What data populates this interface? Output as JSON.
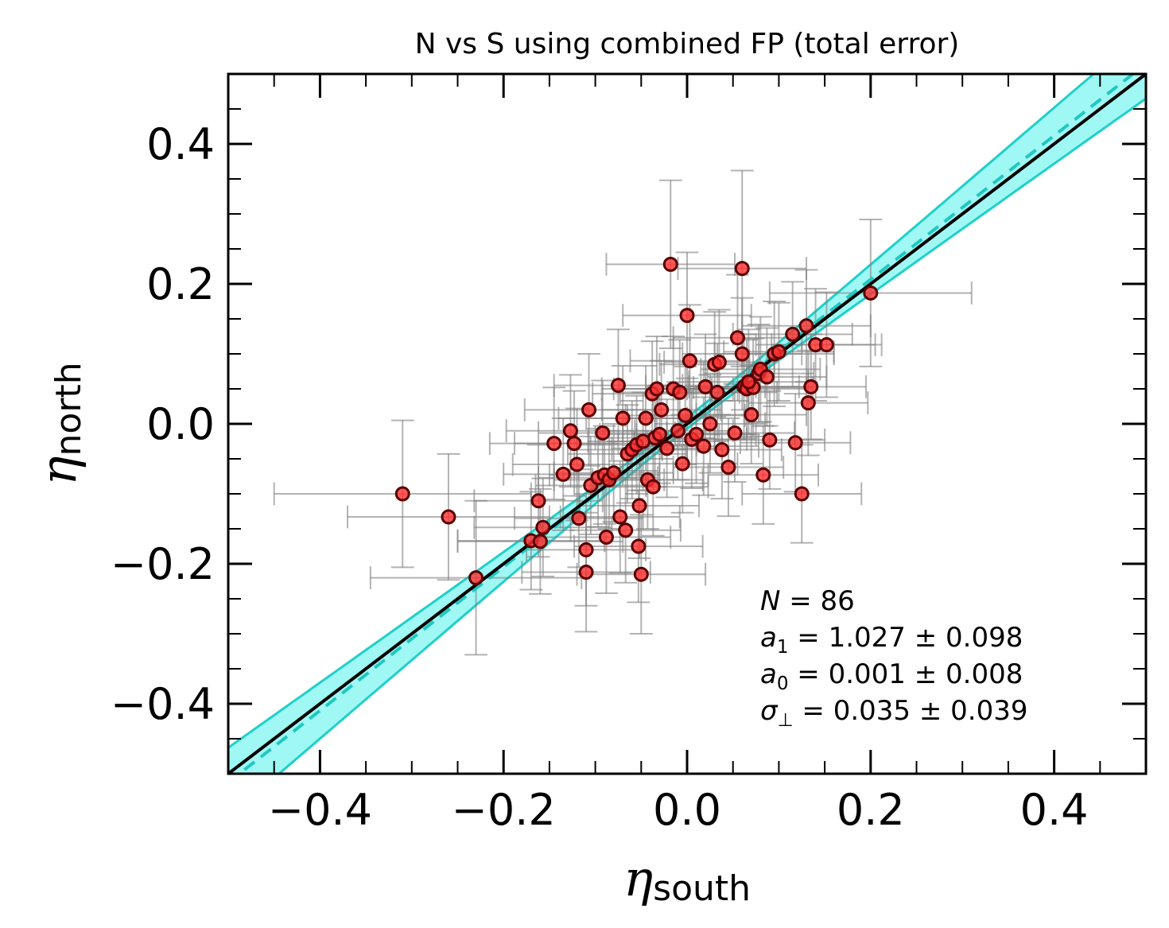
{
  "chart_data": {
    "type": "scatter",
    "title": "N vs S using combined FP (total error)",
    "xlabel": {
      "symbol": "η",
      "subscript": "south"
    },
    "ylabel": {
      "symbol": "η",
      "subscript": "north"
    },
    "xlim": [
      -0.5,
      0.5
    ],
    "ylim": [
      -0.5,
      0.5
    ],
    "major_ticks": [
      -0.4,
      -0.2,
      0.0,
      0.2,
      0.4
    ],
    "tick_labels": [
      "−0.4",
      "−0.2",
      "0.0",
      "0.2",
      "0.4"
    ],
    "minor_tick_step": 0.05,
    "grid": false,
    "colors": {
      "points": "#ff3030",
      "point_edge": "#5a0000",
      "errorbars": "#808080",
      "band": "#7ff5f0",
      "band_edge": "#20d0c8",
      "fit_line": "#20c8c0",
      "identity_line": "#000000"
    },
    "fit": {
      "slope": 1.027,
      "intercept": 0.001,
      "slope_err": 0.098,
      "intercept_err": 0.008
    },
    "identity": {
      "slope": 1.0,
      "intercept": 0.0
    },
    "annotations": [
      {
        "var": "N",
        "sub": "",
        "text": " = 86"
      },
      {
        "var": "a",
        "sub": "1",
        "text": " = 1.027 ± 0.098"
      },
      {
        "var": "a",
        "sub": "0",
        "text": " = 0.001 ± 0.008"
      },
      {
        "var": "σ",
        "sub": "⊥",
        "text": " = 0.035 ± 0.039"
      }
    ],
    "points": [
      {
        "x": -0.31,
        "y": -0.1,
        "xerr": 0.14,
        "yerr": 0.105
      },
      {
        "x": -0.26,
        "y": -0.133,
        "xerr": 0.11,
        "yerr": 0.09
      },
      {
        "x": -0.23,
        "y": -0.22,
        "xerr": 0.115,
        "yerr": 0.11
      },
      {
        "x": -0.17,
        "y": -0.167,
        "xerr": 0.08,
        "yerr": 0.07
      },
      {
        "x": -0.162,
        "y": -0.11,
        "xerr": 0.07,
        "yerr": 0.08
      },
      {
        "x": -0.16,
        "y": -0.168,
        "xerr": 0.09,
        "yerr": 0.075
      },
      {
        "x": -0.157,
        "y": -0.148,
        "xerr": 0.075,
        "yerr": 0.07
      },
      {
        "x": -0.145,
        "y": -0.028,
        "xerr": 0.07,
        "yerr": 0.08
      },
      {
        "x": -0.135,
        "y": -0.072,
        "xerr": 0.065,
        "yerr": 0.08
      },
      {
        "x": -0.127,
        "y": -0.01,
        "xerr": 0.07,
        "yerr": 0.08
      },
      {
        "x": -0.123,
        "y": -0.028,
        "xerr": 0.065,
        "yerr": 0.075
      },
      {
        "x": -0.118,
        "y": -0.135,
        "xerr": 0.07,
        "yerr": 0.07
      },
      {
        "x": -0.11,
        "y": -0.18,
        "xerr": 0.065,
        "yerr": 0.08
      },
      {
        "x": -0.11,
        "y": -0.212,
        "xerr": 0.07,
        "yerr": 0.085
      },
      {
        "x": -0.107,
        "y": 0.02,
        "xerr": 0.07,
        "yerr": 0.08
      },
      {
        "x": -0.105,
        "y": -0.088,
        "xerr": 0.06,
        "yerr": 0.07
      },
      {
        "x": -0.097,
        "y": -0.077,
        "xerr": 0.065,
        "yerr": 0.07
      },
      {
        "x": -0.092,
        "y": -0.013,
        "xerr": 0.07,
        "yerr": 0.075
      },
      {
        "x": -0.09,
        "y": -0.073,
        "xerr": 0.06,
        "yerr": 0.07
      },
      {
        "x": -0.088,
        "y": -0.162,
        "xerr": 0.07,
        "yerr": 0.08
      },
      {
        "x": -0.085,
        "y": -0.08,
        "xerr": 0.06,
        "yerr": 0.07
      },
      {
        "x": -0.08,
        "y": -0.07,
        "xerr": 0.065,
        "yerr": 0.07
      },
      {
        "x": -0.075,
        "y": 0.055,
        "xerr": 0.07,
        "yerr": 0.08
      },
      {
        "x": -0.073,
        "y": -0.133,
        "xerr": 0.065,
        "yerr": 0.08
      },
      {
        "x": -0.07,
        "y": 0.008,
        "xerr": 0.07,
        "yerr": 0.075
      },
      {
        "x": -0.067,
        "y": -0.152,
        "xerr": 0.06,
        "yerr": 0.075
      },
      {
        "x": -0.065,
        "y": -0.043,
        "xerr": 0.065,
        "yerr": 0.07
      },
      {
        "x": -0.06,
        "y": -0.037,
        "xerr": 0.06,
        "yerr": 0.07
      },
      {
        "x": -0.055,
        "y": -0.03,
        "xerr": 0.065,
        "yerr": 0.07
      },
      {
        "x": -0.053,
        "y": -0.175,
        "xerr": 0.07,
        "yerr": 0.08
      },
      {
        "x": -0.052,
        "y": -0.117,
        "xerr": 0.065,
        "yerr": 0.075
      },
      {
        "x": -0.05,
        "y": -0.215,
        "xerr": 0.07,
        "yerr": 0.085
      },
      {
        "x": -0.048,
        "y": -0.025,
        "xerr": 0.06,
        "yerr": 0.07
      },
      {
        "x": -0.045,
        "y": 0.008,
        "xerr": 0.065,
        "yerr": 0.075
      },
      {
        "x": -0.043,
        "y": -0.08,
        "xerr": 0.06,
        "yerr": 0.07
      },
      {
        "x": -0.038,
        "y": 0.043,
        "xerr": 0.065,
        "yerr": 0.075
      },
      {
        "x": -0.037,
        "y": -0.09,
        "xerr": 0.06,
        "yerr": 0.07
      },
      {
        "x": -0.035,
        "y": -0.02,
        "xerr": 0.065,
        "yerr": 0.07
      },
      {
        "x": -0.033,
        "y": 0.05,
        "xerr": 0.06,
        "yerr": 0.075
      },
      {
        "x": -0.03,
        "y": -0.015,
        "xerr": 0.065,
        "yerr": 0.07
      },
      {
        "x": -0.022,
        "y": -0.035,
        "xerr": 0.06,
        "yerr": 0.07
      },
      {
        "x": -0.018,
        "y": 0.228,
        "xerr": 0.07,
        "yerr": 0.12
      },
      {
        "x": -0.015,
        "y": 0.05,
        "xerr": 0.065,
        "yerr": 0.075
      },
      {
        "x": -0.01,
        "y": -0.01,
        "xerr": 0.06,
        "yerr": 0.07
      },
      {
        "x": -0.008,
        "y": 0.045,
        "xerr": 0.065,
        "yerr": 0.075
      },
      {
        "x": -0.005,
        "y": -0.057,
        "xerr": 0.06,
        "yerr": 0.07
      },
      {
        "x": -0.002,
        "y": 0.012,
        "xerr": 0.065,
        "yerr": 0.07
      },
      {
        "x": 0.0,
        "y": 0.155,
        "xerr": 0.07,
        "yerr": 0.09
      },
      {
        "x": 0.003,
        "y": 0.09,
        "xerr": 0.065,
        "yerr": 0.08
      },
      {
        "x": 0.005,
        "y": -0.022,
        "xerr": 0.06,
        "yerr": 0.07
      },
      {
        "x": 0.01,
        "y": -0.015,
        "xerr": 0.065,
        "yerr": 0.07
      },
      {
        "x": 0.018,
        "y": -0.032,
        "xerr": 0.06,
        "yerr": 0.07
      },
      {
        "x": 0.02,
        "y": 0.053,
        "xerr": 0.065,
        "yerr": 0.075
      },
      {
        "x": 0.03,
        "y": 0.085,
        "xerr": 0.06,
        "yerr": 0.075
      },
      {
        "x": 0.033,
        "y": 0.045,
        "xerr": 0.065,
        "yerr": 0.07
      },
      {
        "x": 0.035,
        "y": 0.088,
        "xerr": 0.06,
        "yerr": 0.075
      },
      {
        "x": 0.038,
        "y": -0.037,
        "xerr": 0.065,
        "yerr": 0.07
      },
      {
        "x": 0.045,
        "y": -0.062,
        "xerr": 0.06,
        "yerr": 0.07
      },
      {
        "x": 0.052,
        "y": -0.013,
        "xerr": 0.065,
        "yerr": 0.07
      },
      {
        "x": 0.055,
        "y": 0.123,
        "xerr": 0.07,
        "yerr": 0.09
      },
      {
        "x": 0.06,
        "y": 0.222,
        "xerr": 0.07,
        "yerr": 0.14
      },
      {
        "x": 0.06,
        "y": 0.1,
        "xerr": 0.065,
        "yerr": 0.08
      },
      {
        "x": 0.062,
        "y": 0.053,
        "xerr": 0.06,
        "yerr": 0.075
      },
      {
        "x": 0.065,
        "y": 0.05,
        "xerr": 0.065,
        "yerr": 0.07
      },
      {
        "x": 0.07,
        "y": 0.013,
        "xerr": 0.06,
        "yerr": 0.07
      },
      {
        "x": 0.072,
        "y": 0.052,
        "xerr": 0.065,
        "yerr": 0.07
      },
      {
        "x": 0.078,
        "y": 0.072,
        "xerr": 0.06,
        "yerr": 0.07
      },
      {
        "x": 0.08,
        "y": 0.078,
        "xerr": 0.065,
        "yerr": 0.075
      },
      {
        "x": 0.083,
        "y": -0.073,
        "xerr": 0.06,
        "yerr": 0.07
      },
      {
        "x": 0.087,
        "y": 0.067,
        "xerr": 0.065,
        "yerr": 0.07
      },
      {
        "x": 0.09,
        "y": -0.023,
        "xerr": 0.06,
        "yerr": 0.07
      },
      {
        "x": 0.095,
        "y": 0.1,
        "xerr": 0.065,
        "yerr": 0.075
      },
      {
        "x": 0.1,
        "y": 0.103,
        "xerr": 0.06,
        "yerr": 0.07
      },
      {
        "x": 0.115,
        "y": 0.128,
        "xerr": 0.065,
        "yerr": 0.075
      },
      {
        "x": 0.118,
        "y": -0.027,
        "xerr": 0.06,
        "yerr": 0.07
      },
      {
        "x": 0.125,
        "y": -0.1,
        "xerr": 0.065,
        "yerr": 0.07
      },
      {
        "x": 0.13,
        "y": 0.14,
        "xerr": 0.07,
        "yerr": 0.08
      },
      {
        "x": 0.132,
        "y": 0.03,
        "xerr": 0.065,
        "yerr": 0.075
      },
      {
        "x": 0.135,
        "y": 0.053,
        "xerr": 0.06,
        "yerr": 0.075
      },
      {
        "x": 0.14,
        "y": 0.113,
        "xerr": 0.065,
        "yerr": 0.08
      },
      {
        "x": 0.152,
        "y": 0.113,
        "xerr": 0.06,
        "yerr": 0.075
      },
      {
        "x": 0.2,
        "y": 0.187,
        "xerr": 0.11,
        "yerr": 0.105
      },
      {
        "x": -0.12,
        "y": -0.058,
        "xerr": 0.07,
        "yerr": 0.08
      },
      {
        "x": -0.028,
        "y": 0.02,
        "xerr": 0.065,
        "yerr": 0.07
      },
      {
        "x": 0.025,
        "y": 0.0,
        "xerr": 0.06,
        "yerr": 0.07
      },
      {
        "x": 0.067,
        "y": 0.06,
        "xerr": 0.065,
        "yerr": 0.075
      }
    ]
  }
}
